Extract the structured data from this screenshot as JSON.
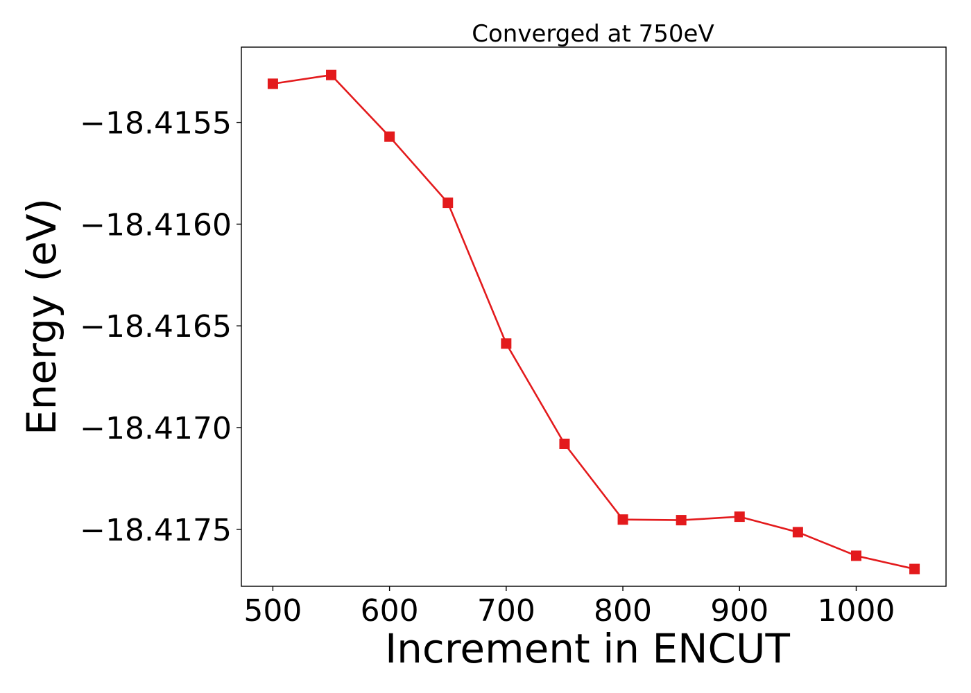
{
  "chart_data": {
    "type": "line",
    "title": "Converged at 750eV",
    "xlabel": "Increment in ENCUT",
    "ylabel": "Energy (eV)",
    "xlim": [
      473,
      1077
    ],
    "ylim": [
      -18.41778,
      -18.41513
    ],
    "xticks": [
      500,
      600,
      700,
      800,
      900,
      1000
    ],
    "xtick_labels": [
      "500",
      "600",
      "700",
      "800",
      "900",
      "1000"
    ],
    "yticks": [
      -18.4155,
      -18.416,
      -18.4165,
      -18.417,
      -18.4175
    ],
    "ytick_labels": [
      "−18.4155",
      "−18.4160",
      "−18.4165",
      "−18.4170",
      "−18.4175"
    ],
    "grid": false,
    "legend": "none",
    "series": [
      {
        "color": "#e31a1c",
        "marker": "square",
        "x": [
          500,
          550,
          600,
          650,
          700,
          750,
          800,
          850,
          900,
          950,
          1000,
          1050
        ],
        "y": [
          -18.41531,
          -18.415267,
          -18.41557,
          -18.415895,
          -18.416587,
          -18.41708,
          -18.417452,
          -18.417455,
          -18.417438,
          -18.417514,
          -18.41763,
          -18.417695
        ]
      }
    ]
  }
}
